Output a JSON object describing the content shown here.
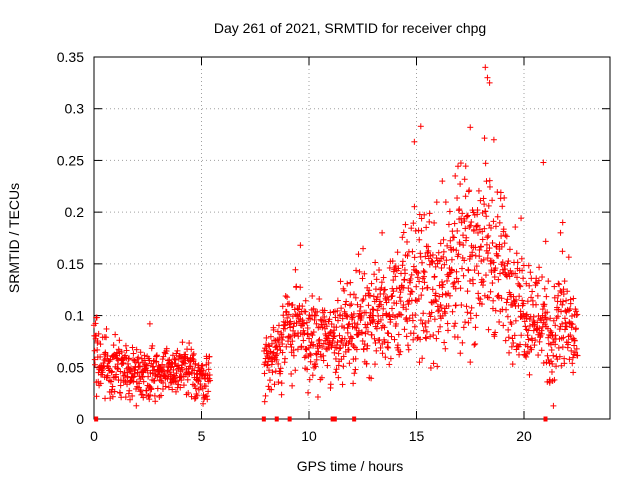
{
  "chart_data": {
    "type": "scatter",
    "title": "Day 261 of 2021, SRMTID for receiver chpg",
    "xlabel": "GPS time / hours",
    "ylabel": "SRMTID / TECUs",
    "xlim": [
      0,
      24
    ],
    "ylim": [
      0,
      0.35
    ],
    "xticks": [
      0,
      5,
      10,
      15,
      20
    ],
    "xtick_labels": [
      "0",
      "5",
      "10",
      "15",
      "20"
    ],
    "yticks": [
      0,
      0.05,
      0.1,
      0.15,
      0.2,
      0.25,
      0.3,
      0.35
    ],
    "ytick_labels": [
      "0",
      "0.05",
      "0.1",
      "0.15",
      "0.2",
      "0.25",
      "0.3",
      "0.35"
    ],
    "grid": true,
    "marker": "+",
    "color": "#ff0000",
    "envelope": [
      [
        0.0,
        0.07,
        0.03
      ],
      [
        0.3,
        0.05,
        0.02
      ],
      [
        1.0,
        0.055,
        0.02
      ],
      [
        1.5,
        0.045,
        0.015
      ],
      [
        2.0,
        0.045,
        0.015
      ],
      [
        2.5,
        0.045,
        0.015
      ],
      [
        3.0,
        0.045,
        0.015
      ],
      [
        3.5,
        0.045,
        0.015
      ],
      [
        4.0,
        0.048,
        0.015
      ],
      [
        4.5,
        0.045,
        0.015
      ],
      [
        5.0,
        0.04,
        0.015
      ],
      [
        5.4,
        0.04,
        0.015
      ],
      [
        7.9,
        0.05,
        0.02
      ],
      [
        8.5,
        0.065,
        0.025
      ],
      [
        9.0,
        0.085,
        0.025
      ],
      [
        9.5,
        0.09,
        0.03
      ],
      [
        10.0,
        0.075,
        0.025
      ],
      [
        10.5,
        0.075,
        0.025
      ],
      [
        11.0,
        0.08,
        0.025
      ],
      [
        11.5,
        0.085,
        0.025
      ],
      [
        12.0,
        0.09,
        0.03
      ],
      [
        12.5,
        0.1,
        0.03
      ],
      [
        13.0,
        0.1,
        0.03
      ],
      [
        13.5,
        0.1,
        0.03
      ],
      [
        14.0,
        0.11,
        0.035
      ],
      [
        14.5,
        0.12,
        0.04
      ],
      [
        15.0,
        0.13,
        0.045
      ],
      [
        15.5,
        0.13,
        0.045
      ],
      [
        16.0,
        0.13,
        0.045
      ],
      [
        16.5,
        0.14,
        0.045
      ],
      [
        17.0,
        0.15,
        0.05
      ],
      [
        17.5,
        0.16,
        0.05
      ],
      [
        18.0,
        0.17,
        0.055
      ],
      [
        18.5,
        0.16,
        0.05
      ],
      [
        19.0,
        0.14,
        0.045
      ],
      [
        19.5,
        0.13,
        0.04
      ],
      [
        20.0,
        0.11,
        0.035
      ],
      [
        20.5,
        0.1,
        0.03
      ],
      [
        21.0,
        0.1,
        0.04
      ],
      [
        21.3,
        0.07,
        0.03
      ],
      [
        21.8,
        0.1,
        0.04
      ],
      [
        22.2,
        0.08,
        0.03
      ],
      [
        22.5,
        0.075,
        0.025
      ]
    ],
    "peaks": [
      [
        0.1,
        0.098
      ],
      [
        2.6,
        0.092
      ],
      [
        9.6,
        0.168
      ],
      [
        13.4,
        0.18
      ],
      [
        14.9,
        0.268
      ],
      [
        15.2,
        0.283
      ],
      [
        16.2,
        0.23
      ],
      [
        16.8,
        0.235
      ],
      [
        17.5,
        0.282
      ],
      [
        18.2,
        0.34
      ],
      [
        18.3,
        0.33
      ],
      [
        18.4,
        0.325
      ],
      [
        18.6,
        0.27
      ],
      [
        20.9,
        0.248
      ],
      [
        21.8,
        0.19
      ],
      [
        21.7,
        0.18
      ],
      [
        17.5,
        0.055
      ],
      [
        20.1,
        0.06
      ],
      [
        21.2,
        0.035
      ],
      [
        11.0,
        0.03
      ]
    ],
    "zero_points": [
      0.1,
      7.9,
      8.5,
      9.1,
      11.1,
      11.2,
      12.1,
      21.0
    ]
  }
}
